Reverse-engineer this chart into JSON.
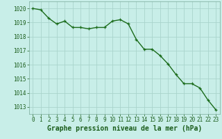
{
  "x": [
    0,
    1,
    2,
    3,
    4,
    5,
    6,
    7,
    8,
    9,
    10,
    11,
    12,
    13,
    14,
    15,
    16,
    17,
    18,
    19,
    20,
    21,
    22,
    23
  ],
  "y": [
    1020.0,
    1019.9,
    1019.3,
    1018.9,
    1019.1,
    1018.65,
    1018.65,
    1018.55,
    1018.65,
    1018.65,
    1019.1,
    1019.2,
    1018.9,
    1017.8,
    1017.1,
    1017.1,
    1016.65,
    1016.05,
    1015.3,
    1014.65,
    1014.65,
    1014.35,
    1013.5,
    1012.8
  ],
  "line_color": "#1a6b1a",
  "marker": "+",
  "marker_size": 3,
  "linewidth": 1.0,
  "bg_color": "#c8eee8",
  "grid_color": "#aad4cc",
  "xlabel": "Graphe pression niveau de la mer (hPa)",
  "xlabel_fontsize": 7,
  "xlabel_color": "#1a5c1a",
  "ylim": [
    1012.5,
    1020.5
  ],
  "xlim": [
    -0.5,
    23.5
  ],
  "yticks": [
    1013,
    1014,
    1015,
    1016,
    1017,
    1018,
    1019,
    1020
  ],
  "xticks": [
    0,
    1,
    2,
    3,
    4,
    5,
    6,
    7,
    8,
    9,
    10,
    11,
    12,
    13,
    14,
    15,
    16,
    17,
    18,
    19,
    20,
    21,
    22,
    23
  ],
  "tick_fontsize": 5.5,
  "tick_color": "#1a5c1a",
  "spine_color": "#7aaa9a"
}
